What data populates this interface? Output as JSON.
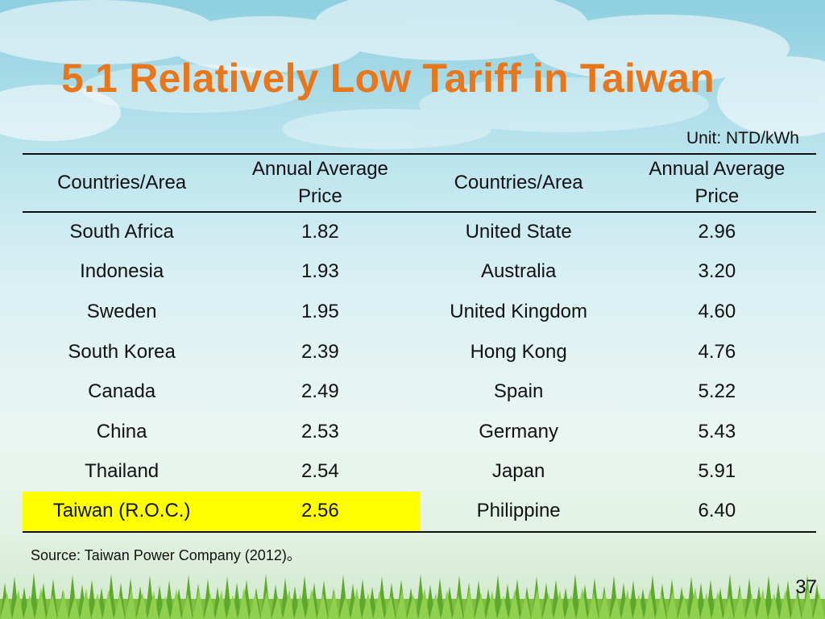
{
  "slide": {
    "title": "5.1 Relatively Low Tariff in Taiwan",
    "unit": "Unit: NTD/kWh",
    "source": "Source: Taiwan Power Company (2012)。",
    "page_number": "37"
  },
  "table": {
    "headers": {
      "country_left": "Countries/Area",
      "price_left_line1": "Annual Average",
      "price_left_line2": "Price",
      "country_right": "Countries/Area",
      "price_right_line1": "Annual Average",
      "price_right_line2": "Price"
    },
    "rows": [
      {
        "country_left": "South Africa",
        "price_left": "1.82",
        "country_right": "United State",
        "price_right": "2.96"
      },
      {
        "country_left": "Indonesia",
        "price_left": "1.93",
        "country_right": "Australia",
        "price_right": "3.20"
      },
      {
        "country_left": "Sweden",
        "price_left": "1.95",
        "country_right": "United Kingdom",
        "price_right": "4.60"
      },
      {
        "country_left": "South Korea",
        "price_left": "2.39",
        "country_right": "Hong Kong",
        "price_right": "4.76"
      },
      {
        "country_left": "Canada",
        "price_left": "2.49",
        "country_right": "Spain",
        "price_right": "5.22"
      },
      {
        "country_left": "China",
        "price_left": "2.53",
        "country_right": "Germany",
        "price_right": "5.43"
      },
      {
        "country_left": "Thailand",
        "price_left": "2.54",
        "country_right": "Japan",
        "price_right": "5.91"
      },
      {
        "country_left": "Taiwan (R.O.C.)",
        "price_left": "2.56",
        "country_right": "Philippine",
        "price_right": "6.40"
      }
    ],
    "highlight_color": "#ffff00"
  },
  "colors": {
    "title": "#e8771c"
  }
}
